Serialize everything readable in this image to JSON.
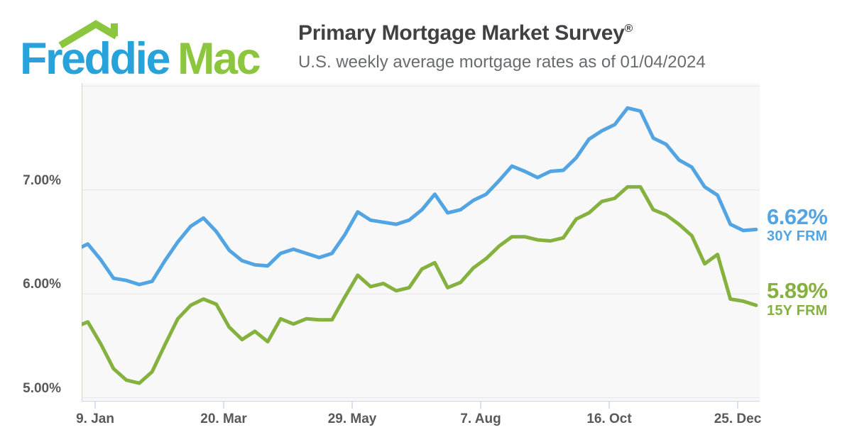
{
  "logo": {
    "part1": "Freddie",
    "part2": "Mac",
    "blue": "#27a2db",
    "green": "#8cc63f"
  },
  "header": {
    "title": "Primary Mortgage Market Survey",
    "title_reg": "®",
    "subtitle": "U.S. weekly average mortgage rates as of 01/04/2024"
  },
  "colors": {
    "plot_bg": "#f8f8f8",
    "grid": "#e6e6e6",
    "axis": "#ccd6eb",
    "label_gray": "#58595b",
    "blue_series": "#52a5e2",
    "green_series": "#85b13f"
  },
  "end_labels": {
    "rate_30y": "6.62%",
    "name_30y": "30Y FRM",
    "rate_15y": "5.89%",
    "name_15y": "15Y FRM"
  },
  "chart_data": {
    "type": "line",
    "x_unit": "weekly",
    "grid": true,
    "legend_position": "right-end-labels",
    "ylim": [
      4.97,
      8.03
    ],
    "dates": [
      "2022-12-29",
      "2023-01-05",
      "2023-01-12",
      "2023-01-19",
      "2023-01-26",
      "2023-02-02",
      "2023-02-09",
      "2023-02-16",
      "2023-02-23",
      "2023-03-02",
      "2023-03-09",
      "2023-03-16",
      "2023-03-23",
      "2023-03-30",
      "2023-04-06",
      "2023-04-13",
      "2023-04-20",
      "2023-04-27",
      "2023-05-04",
      "2023-05-11",
      "2023-05-18",
      "2023-05-25",
      "2023-06-01",
      "2023-06-08",
      "2023-06-15",
      "2023-06-22",
      "2023-06-29",
      "2023-07-06",
      "2023-07-13",
      "2023-07-20",
      "2023-07-27",
      "2023-08-03",
      "2023-08-10",
      "2023-08-17",
      "2023-08-24",
      "2023-08-31",
      "2023-09-07",
      "2023-09-14",
      "2023-09-21",
      "2023-09-28",
      "2023-10-05",
      "2023-10-12",
      "2023-10-19",
      "2023-10-26",
      "2023-11-02",
      "2023-11-09",
      "2023-11-16",
      "2023-11-22",
      "2023-11-30",
      "2023-12-07",
      "2023-12-14",
      "2023-12-21",
      "2023-12-28",
      "2024-01-04"
    ],
    "series": [
      {
        "name": "30Y FRM",
        "color": "#52a5e2",
        "end_value": "6.62%",
        "values": [
          6.42,
          6.48,
          6.33,
          6.15,
          6.13,
          6.09,
          6.12,
          6.32,
          6.5,
          6.65,
          6.73,
          6.6,
          6.42,
          6.32,
          6.28,
          6.27,
          6.39,
          6.43,
          6.39,
          6.35,
          6.39,
          6.57,
          6.79,
          6.71,
          6.69,
          6.67,
          6.71,
          6.81,
          6.96,
          6.78,
          6.81,
          6.9,
          6.96,
          7.09,
          7.23,
          7.18,
          7.12,
          7.18,
          7.19,
          7.31,
          7.49,
          7.57,
          7.63,
          7.79,
          7.76,
          7.5,
          7.44,
          7.29,
          7.22,
          7.03,
          6.95,
          6.67,
          6.61,
          6.62
        ]
      },
      {
        "name": "15Y FRM",
        "color": "#85b13f",
        "end_value": "5.89%",
        "values": [
          5.68,
          5.73,
          5.52,
          5.28,
          5.17,
          5.14,
          5.25,
          5.51,
          5.76,
          5.89,
          5.95,
          5.9,
          5.68,
          5.56,
          5.64,
          5.54,
          5.76,
          5.71,
          5.76,
          5.75,
          5.75,
          5.97,
          6.18,
          6.07,
          6.1,
          6.03,
          6.06,
          6.24,
          6.3,
          6.06,
          6.11,
          6.25,
          6.34,
          6.46,
          6.55,
          6.55,
          6.52,
          6.51,
          6.54,
          6.72,
          6.78,
          6.89,
          6.92,
          7.03,
          7.03,
          6.81,
          6.76,
          6.67,
          6.56,
          6.29,
          6.38,
          5.95,
          5.93,
          5.89
        ]
      }
    ],
    "x_ticks": [
      {
        "label": "9. Jan",
        "week": 0.57
      },
      {
        "label": "20. Mar",
        "week": 10.57
      },
      {
        "label": "29. May",
        "week": 20.57
      },
      {
        "label": "7. Aug",
        "week": 30.57
      },
      {
        "label": "16. Oct",
        "week": 40.57
      },
      {
        "label": "25. Dec",
        "week": 50.57
      }
    ],
    "y_ticks": [
      {
        "label": "7.00%",
        "value": 7.0
      },
      {
        "label": "6.00%",
        "value": 6.0
      },
      {
        "label": "5.00%",
        "value": 5.0
      }
    ],
    "y_grid_values": [
      8.0,
      7.0,
      6.0,
      5.0
    ]
  }
}
